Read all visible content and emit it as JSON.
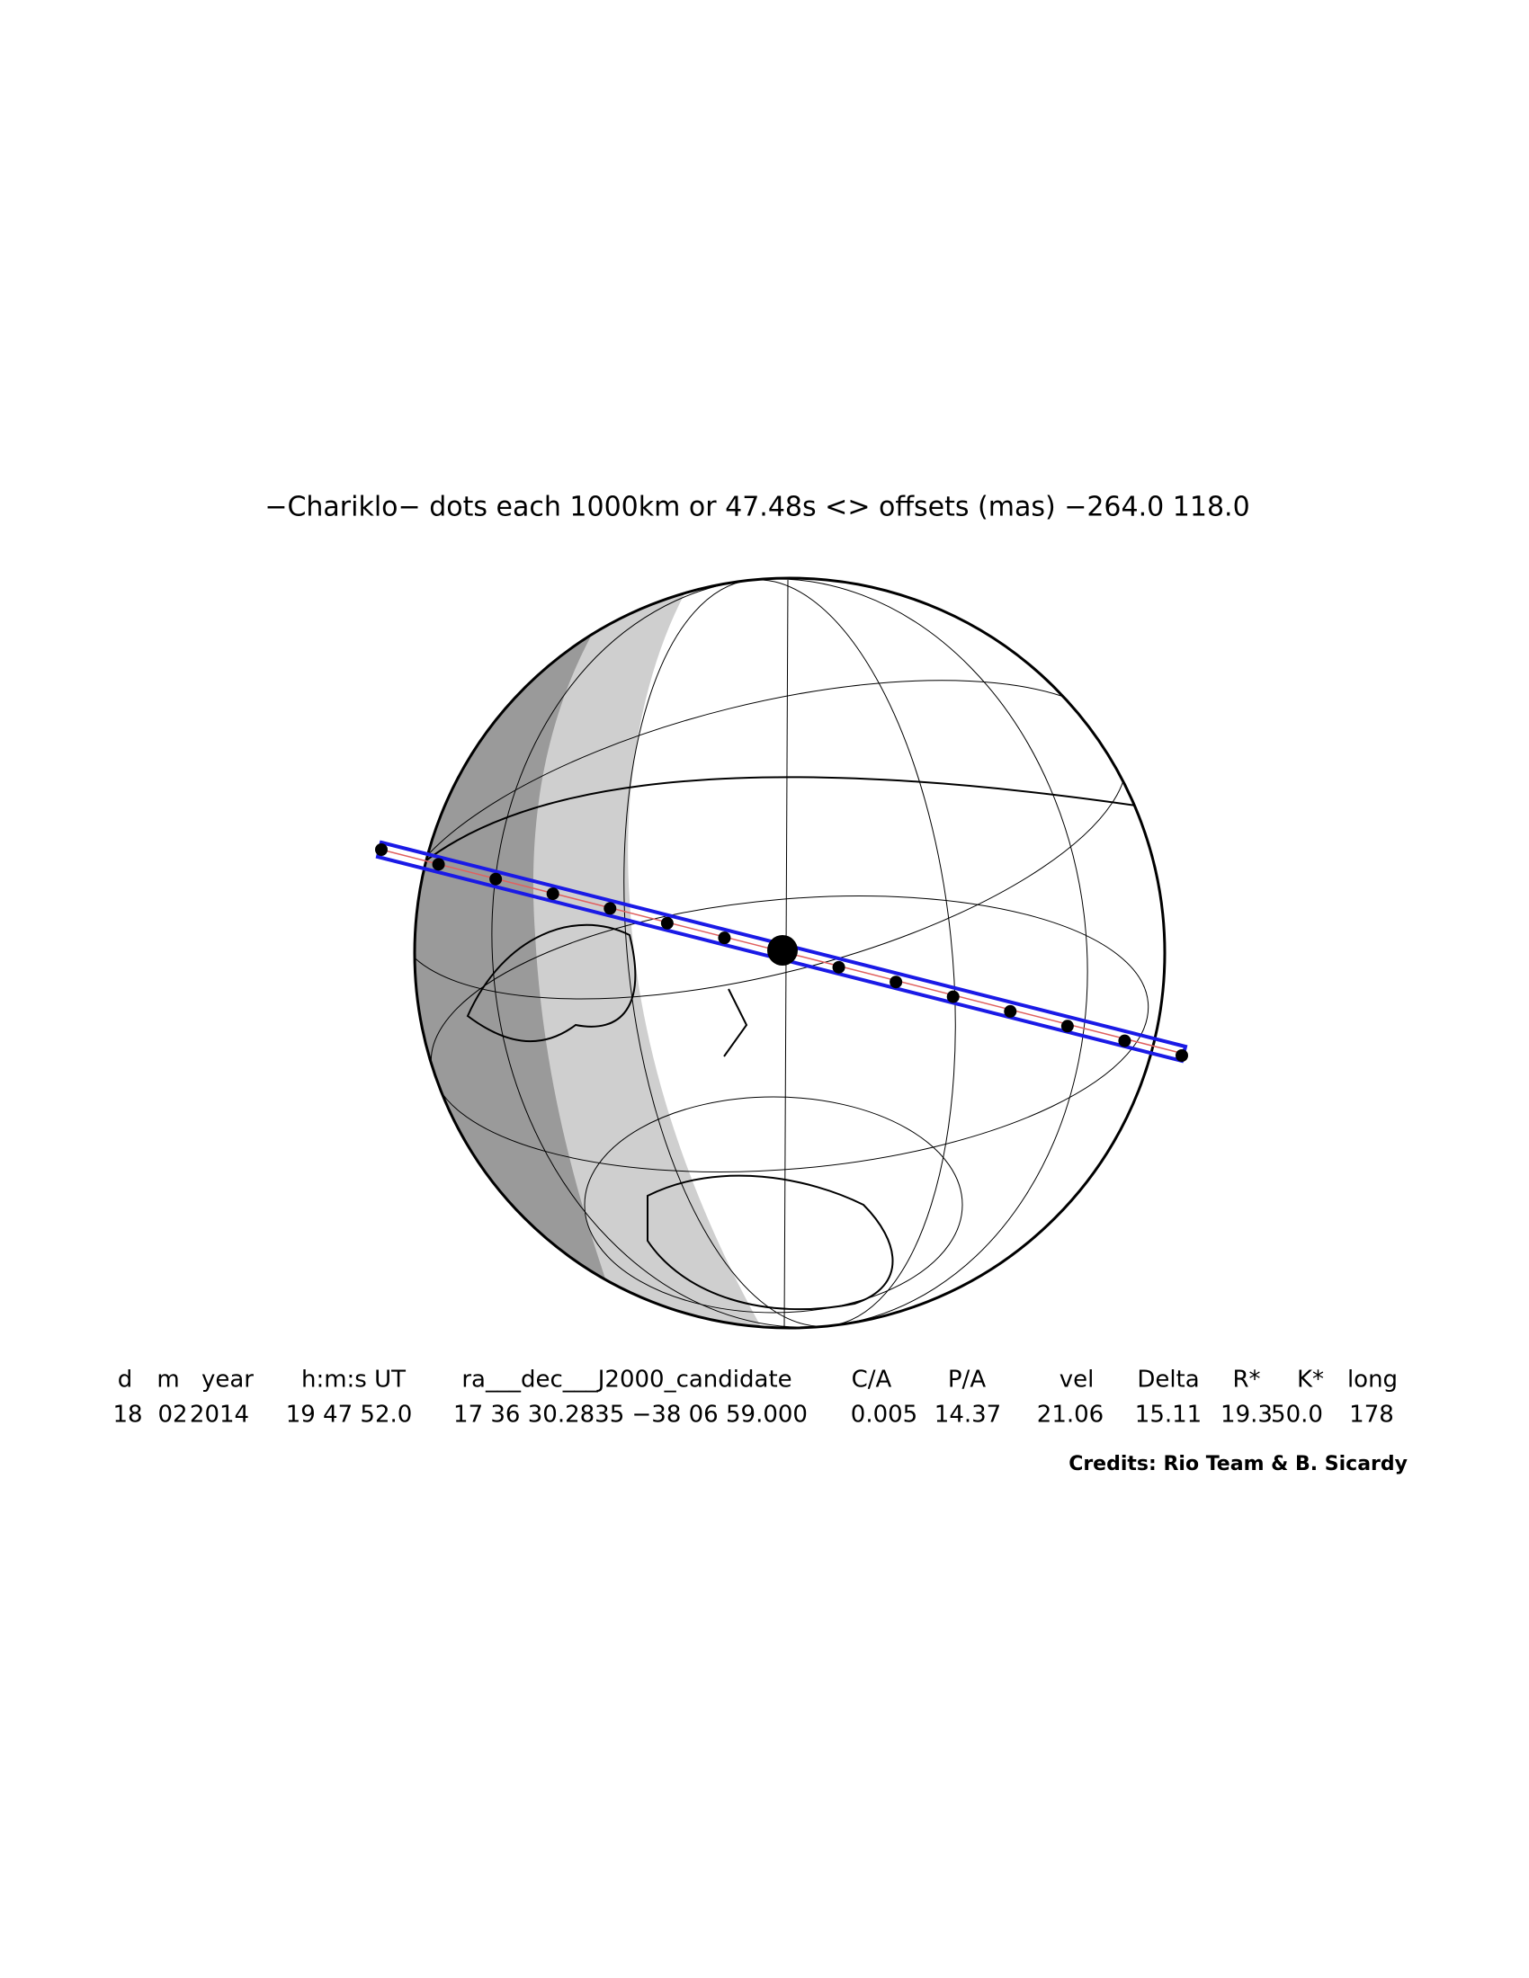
{
  "title": "−Chariklo− dots each 1000km or 47.48s <> offsets (mas) −264.0   118.0",
  "table": {
    "header": [
      "d",
      "m",
      "year",
      "h:m:s UT",
      "ra___dec___J2000_candidate",
      "C/A",
      "P/A",
      "vel",
      "Delta",
      "R*",
      "K*",
      "long"
    ],
    "values": [
      "18",
      "02",
      "2014",
      "19 47 52.0",
      "17 36 30.2835 −38 06 59.000",
      "0.005",
      "14.37",
      "21.06",
      "15.11",
      "19.3",
      "50.0",
      "178"
    ]
  },
  "credits": "Credits: Rio Team & B. Sicardy"
}
